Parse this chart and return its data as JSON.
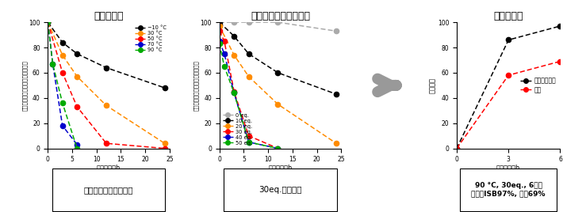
{
  "panel1": {
    "title": "温度依存性",
    "xlabel": "反応時間／h",
    "ylabel": "カーボネート結合の残存割合／％",
    "xlim": [
      0,
      25
    ],
    "ylim": [
      0,
      100
    ],
    "xticks": [
      0,
      5,
      10,
      15,
      20,
      25
    ],
    "yticks": [
      0,
      20,
      40,
      60,
      80,
      100
    ],
    "series": [
      {
        "label": "−10 °C",
        "color": "#000000",
        "x": [
          0,
          3,
          6,
          12,
          24
        ],
        "y": [
          100,
          84,
          75,
          64,
          48
        ]
      },
      {
        "label": "30 °C",
        "color": "#FF8C00",
        "x": [
          0,
          3,
          6,
          12,
          24
        ],
        "y": [
          100,
          74,
          57,
          34,
          4
        ]
      },
      {
        "label": "50 °C",
        "color": "#FF0000",
        "x": [
          0,
          3,
          6,
          12,
          24
        ],
        "y": [
          100,
          60,
          33,
          4,
          0
        ]
      },
      {
        "label": "70 °C",
        "color": "#0000CC",
        "x": [
          0,
          1,
          3,
          6
        ],
        "y": [
          100,
          67,
          18,
          3
        ]
      },
      {
        "label": "90 °C",
        "color": "#00AA00",
        "x": [
          0,
          1,
          3,
          6
        ],
        "y": [
          100,
          67,
          36,
          0
        ]
      }
    ],
    "caption": "温度が高いほど効率大"
  },
  "panel2": {
    "title": "アンモニア濃度依存性",
    "xlabel": "反応時間／h",
    "ylabel": "カーボネート結合の残存割合／％",
    "xlim": [
      0,
      25
    ],
    "ylim": [
      0,
      100
    ],
    "xticks": [
      0,
      5,
      10,
      15,
      20,
      25
    ],
    "yticks": [
      0,
      20,
      40,
      60,
      80,
      100
    ],
    "series": [
      {
        "label": "0 eq.",
        "color": "#AAAAAA",
        "x": [
          0,
          3,
          6,
          12,
          24
        ],
        "y": [
          100,
          100,
          100,
          100,
          93
        ]
      },
      {
        "label": "10 eq.",
        "color": "#000000",
        "x": [
          0,
          3,
          6,
          12,
          24
        ],
        "y": [
          100,
          89,
          75,
          60,
          43
        ]
      },
      {
        "label": "20 eq.",
        "color": "#FF8C00",
        "x": [
          0,
          3,
          6,
          12,
          24
        ],
        "y": [
          97,
          74,
          57,
          35,
          4
        ]
      },
      {
        "label": "30 eq.",
        "color": "#FF0000",
        "x": [
          0,
          1,
          3,
          6,
          12
        ],
        "y": [
          93,
          85,
          45,
          10,
          0
        ]
      },
      {
        "label": "40 eq.",
        "color": "#0000CC",
        "x": [
          0,
          1,
          3,
          6,
          12
        ],
        "y": [
          85,
          75,
          44,
          5,
          0
        ]
      },
      {
        "label": "50 eq.",
        "color": "#00AA00",
        "x": [
          0,
          1,
          3,
          6,
          12
        ],
        "y": [
          83,
          65,
          44,
          5,
          0
        ]
      }
    ],
    "caption": "30eq.で効率大"
  },
  "panel3": {
    "title": "最適化条件",
    "xlabel": "反応時間／h",
    "ylabel": "収率／％",
    "xlim": [
      0,
      6
    ],
    "ylim": [
      0,
      100
    ],
    "xticks": [
      0,
      3,
      6
    ],
    "yticks": [
      0,
      20,
      40,
      60,
      80,
      100
    ],
    "series": [
      {
        "label": "イソソルビド",
        "color": "#000000",
        "x": [
          0,
          3,
          6
        ],
        "y": [
          0,
          86,
          97
        ]
      },
      {
        "label": "尿素",
        "color": "#FF0000",
        "x": [
          0,
          3,
          6
        ],
        "y": [
          0,
          58,
          69
        ]
      }
    ],
    "caption": "90 °C, 30eq., 6時間\n収率：ISB97%, 尿素69%"
  }
}
